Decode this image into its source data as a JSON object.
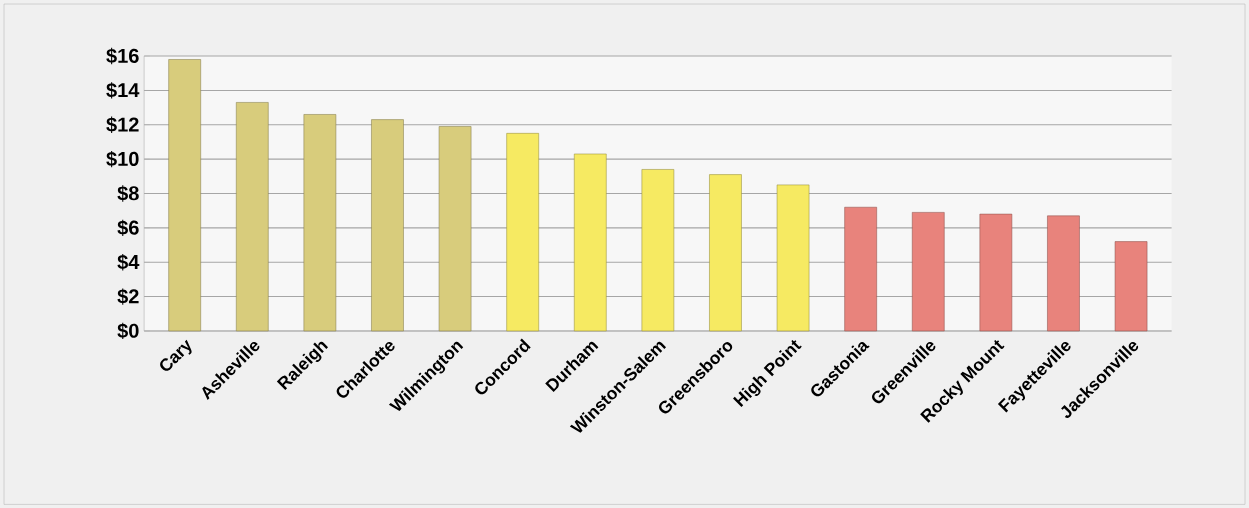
{
  "chart_data": {
    "type": "bar",
    "categories": [
      "Cary",
      "Asheville",
      "Raleigh",
      "Charlotte",
      "Wilmington",
      "Concord",
      "Durham",
      "Winston-Salem",
      "Greensboro",
      "High Point",
      "Gastonia",
      "Greenville",
      "Rocky Mount",
      "Fayetteville",
      "Jacksonville"
    ],
    "values": [
      15.8,
      13.3,
      12.6,
      12.3,
      11.9,
      11.5,
      10.3,
      9.4,
      9.1,
      8.5,
      7.2,
      6.9,
      6.8,
      6.7,
      5.2
    ],
    "colors": [
      "#d8cc7c",
      "#d8cc7c",
      "#d8cc7c",
      "#d8cc7c",
      "#d8cc7c",
      "#f6ea62",
      "#f6ea62",
      "#f6ea62",
      "#f6ea62",
      "#f6ea62",
      "#e8837c",
      "#e8837c",
      "#e8837c",
      "#e8837c",
      "#e8837c"
    ],
    "ylim": [
      0,
      16
    ],
    "yticks": [
      {
        "value": 0,
        "label": "$0"
      },
      {
        "value": 2,
        "label": "$2"
      },
      {
        "value": 4,
        "label": "$4"
      },
      {
        "value": 6,
        "label": "$6"
      },
      {
        "value": 8,
        "label": "$8"
      },
      {
        "value": 10,
        "label": "$10"
      },
      {
        "value": 12,
        "label": "$12"
      },
      {
        "value": 14,
        "label": "$14"
      },
      {
        "value": 16,
        "label": "$16"
      }
    ],
    "grid": "y"
  }
}
